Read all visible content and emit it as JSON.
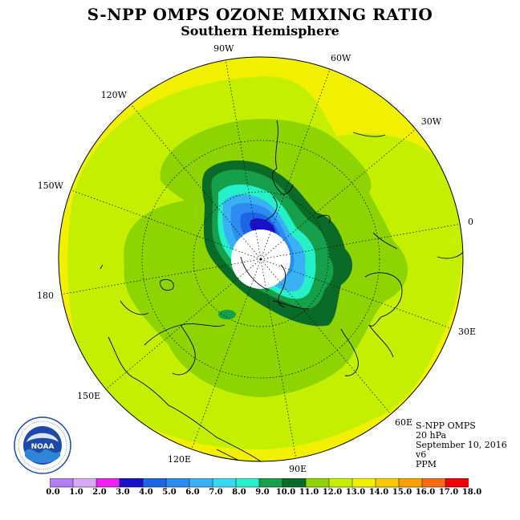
{
  "header": {
    "title": "S-NPP OMPS OZONE MIXING RATIO",
    "subtitle": "Southern Hemisphere"
  },
  "longitude_labels": [
    {
      "text": "90W",
      "lon": -90
    },
    {
      "text": "60W",
      "lon": -60
    },
    {
      "text": "30W",
      "lon": -30
    },
    {
      "text": "0",
      "lon": 0
    },
    {
      "text": "30E",
      "lon": 30
    },
    {
      "text": "60E",
      "lon": 60
    },
    {
      "text": "90E",
      "lon": 90
    },
    {
      "text": "120E",
      "lon": 120
    },
    {
      "text": "150E",
      "lon": 150
    },
    {
      "text": "180",
      "lon": 180
    },
    {
      "text": "150W",
      "lon": -150
    },
    {
      "text": "120W",
      "lon": -120
    }
  ],
  "info": {
    "instrument": "S-NPP OMPS",
    "level": "20 hPa",
    "date": "September 10, 2016",
    "version": "v6",
    "units": "PPM"
  },
  "logo": {
    "text": "NOAA",
    "ring_text": "NATIONAL OCEANIC AND ATMOSPHERIC ADMINISTRATION · U.S. DEPARTMENT OF COMMERCE",
    "icon": "noaa-logo"
  },
  "colorbar": {
    "labels": [
      "0.0",
      "1.0",
      "2.0",
      "3.0",
      "4.0",
      "5.0",
      "6.0",
      "7.0",
      "8.0",
      "9.0",
      "10.0",
      "11.0",
      "12.0",
      "13.0",
      "14.0",
      "15.0",
      "16.0",
      "17.0",
      "18.0"
    ],
    "colors": [
      "#b57bf0",
      "#d9a8f5",
      "#ee22ee",
      "#1a12c8",
      "#1e64e6",
      "#2c8cf0",
      "#3ab0f5",
      "#38d8f5",
      "#26f0c8",
      "#16a04c",
      "#0a6a28",
      "#8ed400",
      "#c4f000",
      "#f0f000",
      "#f8c800",
      "#f8a000",
      "#f86c10",
      "#f00000",
      "#8a5030"
    ]
  },
  "map_data": {
    "projection": "south-polar-stereographic",
    "hemisphere": "Southern",
    "ozone_levels_ppm": [
      0,
      1,
      2,
      3,
      4,
      5,
      6,
      7,
      8,
      9,
      10,
      11,
      12,
      13,
      14,
      15,
      16,
      17,
      18
    ]
  }
}
